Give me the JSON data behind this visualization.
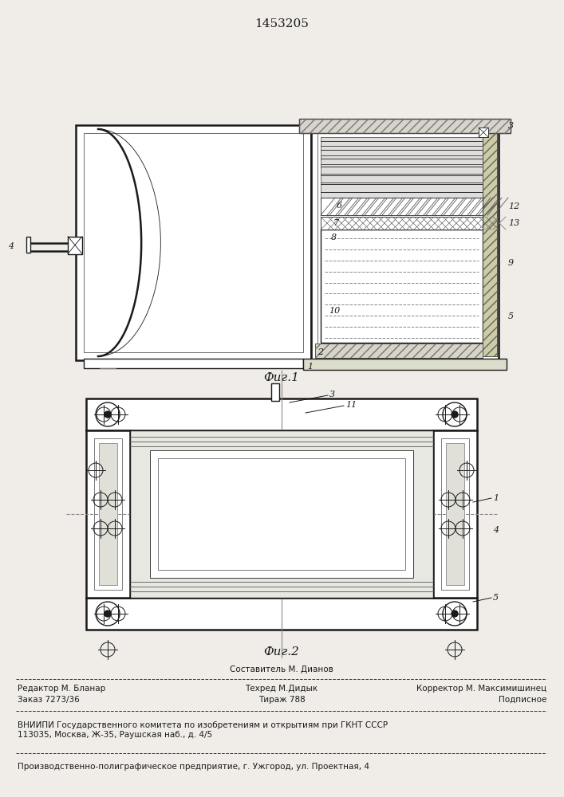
{
  "patent_number": "1453205",
  "fig1_caption": "Фиг.1",
  "fig2_caption": "Фиг.2",
  "bg_color": "#f0ede8",
  "line_color": "#1a1a1a",
  "footer": {
    "line1_center": "Составитель М. Дианов",
    "line2_left": "Редактор М. Бланар",
    "line2_center": "Техред М.Дидык",
    "line2_right": "Корректор М. Максимишинец",
    "line3_left": "Заказ 7273/36",
    "line3_center": "Тираж 788",
    "line3_right": "Подписное",
    "line4": "ВНИИПИ Государственного комитета по изобретениям и открытиям при ГКНТ СССР",
    "line5": "113035, Москва, Ж-35, Раушская наб., д. 4/5",
    "line6": "Производственно-полиграфическое предприятие, г. Ужгород, ул. Проектная, 4"
  }
}
